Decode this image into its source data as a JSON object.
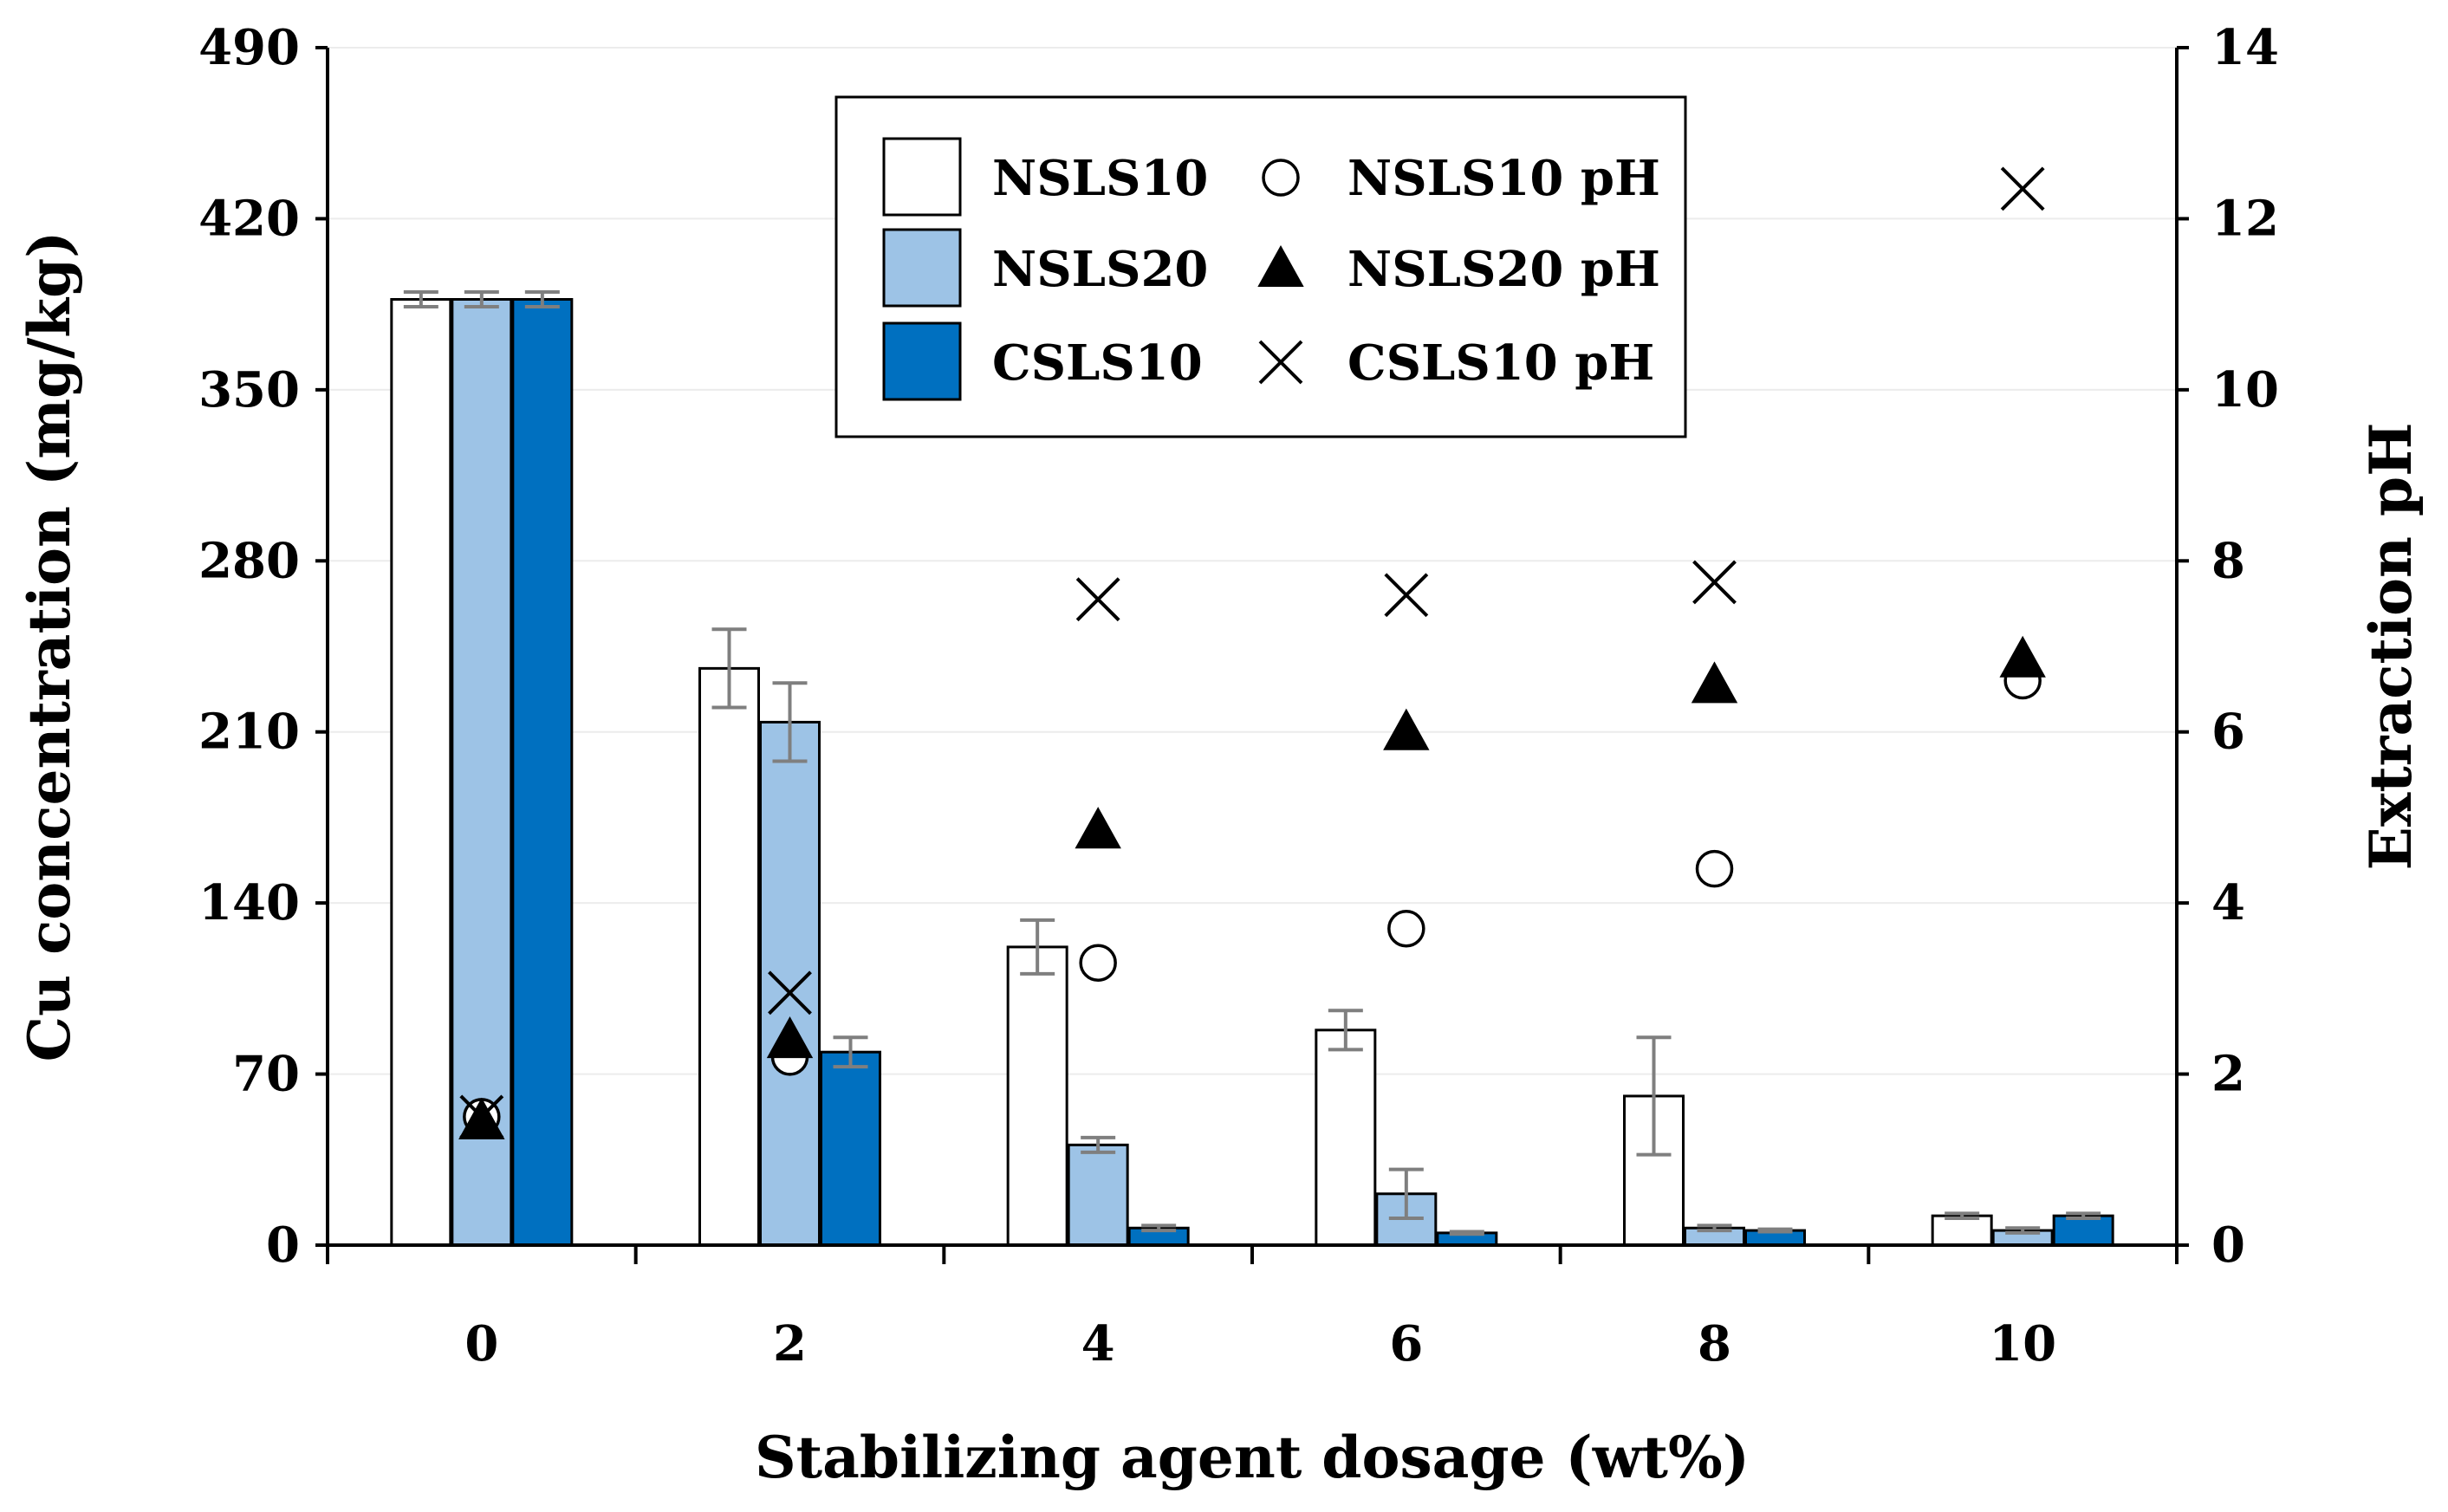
{
  "chart_data": {
    "type": "bar",
    "xlabel": "Stabilizing agent dosage (wt%)",
    "ylabel": "Cu concentration (mg/kg)",
    "y2label": "Extraction pH",
    "categories": [
      "0",
      "2",
      "4",
      "6",
      "8",
      "10"
    ],
    "ylim": [
      0,
      490
    ],
    "yticks": [
      "0",
      "70",
      "140",
      "210",
      "280",
      "350",
      "420",
      "490"
    ],
    "y2lim": [
      0,
      14
    ],
    "y2ticks": [
      "0",
      "2",
      "4",
      "6",
      "8",
      "10",
      "12",
      "14"
    ],
    "grid": "horizontal",
    "legend_position": "top-center",
    "bar_series": [
      {
        "name": "NSLS10",
        "fill": "#ffffff",
        "values": [
          387,
          236,
          122,
          88,
          61,
          12
        ],
        "errors": [
          3,
          16,
          11,
          8,
          24,
          1
        ]
      },
      {
        "name": "NSLS20",
        "fill": "#9dc3e6",
        "values": [
          387,
          214,
          41,
          21,
          7,
          6
        ],
        "errors": [
          3,
          16,
          3,
          10,
          1,
          1
        ]
      },
      {
        "name": "CSLS10",
        "fill": "#0070c0",
        "values": [
          387,
          79,
          7,
          5,
          6,
          12
        ],
        "errors": [
          3,
          6,
          1,
          0.5,
          0.5,
          1
        ]
      }
    ],
    "marker_series": [
      {
        "name": "NSLS10 pH",
        "marker": "circle",
        "values": [
          1.5,
          2.2,
          3.3,
          3.7,
          4.4,
          6.6
        ]
      },
      {
        "name": "NSLS20 pH",
        "marker": "triangle",
        "values": [
          1.45,
          2.4,
          4.85,
          6.0,
          6.55,
          6.85
        ]
      },
      {
        "name": "CSLS10 pH",
        "marker": "cross",
        "values": [
          1.5,
          2.95,
          7.55,
          7.6,
          7.75,
          12.35
        ]
      }
    ],
    "colors": {
      "nsls10": "#ffffff",
      "nsls20": "#9dc3e6",
      "csls10": "#0070c0",
      "error_bar": "#7f7f7f",
      "axis": "#000000"
    }
  }
}
